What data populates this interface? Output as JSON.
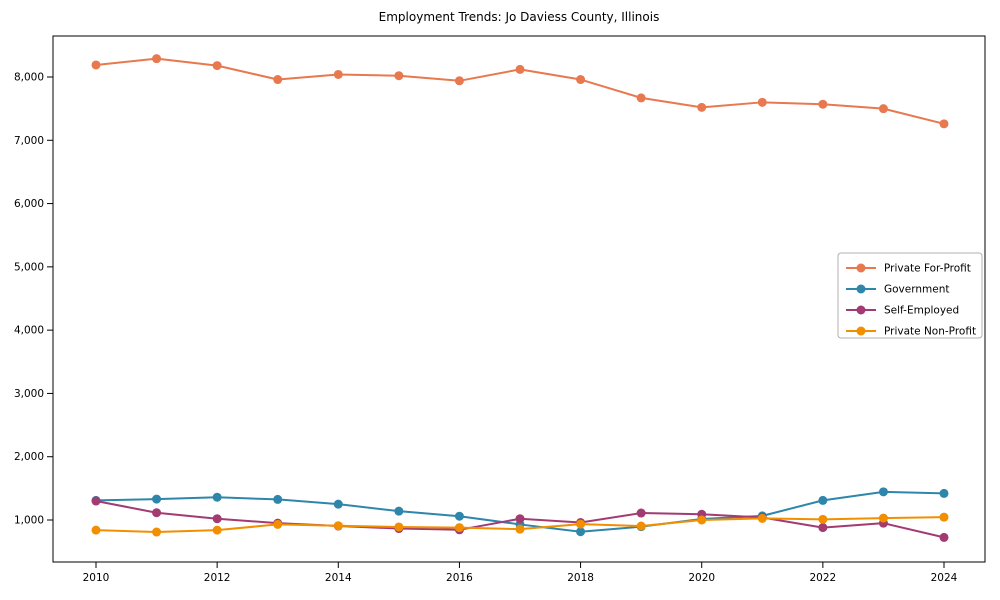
{
  "chart_data": {
    "type": "line",
    "title": "Employment Trends: Jo Daviess County, Illinois",
    "xlabel": "",
    "ylabel": "",
    "x": [
      2010,
      2011,
      2012,
      2013,
      2014,
      2015,
      2016,
      2017,
      2018,
      2019,
      2020,
      2021,
      2022,
      2023,
      2024
    ],
    "x_tick_labels": [
      "2010",
      "2012",
      "2014",
      "2016",
      "2018",
      "2020",
      "2022",
      "2024"
    ],
    "x_ticks": [
      2010,
      2012,
      2014,
      2016,
      2018,
      2020,
      2022,
      2024
    ],
    "y_ticks": [
      1000,
      2000,
      3000,
      4000,
      5000,
      6000,
      7000,
      8000
    ],
    "y_tick_labels": [
      "1,000",
      "2,000",
      "3,000",
      "4,000",
      "5,000",
      "6,000",
      "7,000",
      "8,000"
    ],
    "ylim": [
      290,
      8710
    ],
    "xlim": [
      2009.3,
      2024.7
    ],
    "grid": false,
    "legend_position": "center right",
    "series": [
      {
        "name": "Private For-Profit",
        "color": "#e8784e",
        "values": [
          8190,
          8290,
          8180,
          7960,
          8040,
          8020,
          7940,
          8120,
          7960,
          7670,
          7520,
          7600,
          7570,
          7500,
          7260
        ]
      },
      {
        "name": "Government",
        "color": "#2e86ab",
        "values": [
          1310,
          1330,
          1360,
          1325,
          1250,
          1140,
          1060,
          930,
          815,
          895,
          1015,
          1065,
          1310,
          1445,
          1420
        ]
      },
      {
        "name": "Self-Employed",
        "color": "#a23b72",
        "values": [
          1300,
          1115,
          1020,
          950,
          905,
          865,
          845,
          1020,
          960,
          1110,
          1090,
          1040,
          880,
          950,
          725
        ]
      },
      {
        "name": "Private Non-Profit",
        "color": "#f18f01",
        "values": [
          840,
          810,
          840,
          930,
          910,
          890,
          880,
          855,
          935,
          905,
          1000,
          1025,
          1010,
          1030,
          1045
        ]
      }
    ],
    "axis_color": "#000000",
    "tick_label_color": "#000000",
    "legend_border_color": "#b0b0b0",
    "background_color": "#ffffff"
  }
}
